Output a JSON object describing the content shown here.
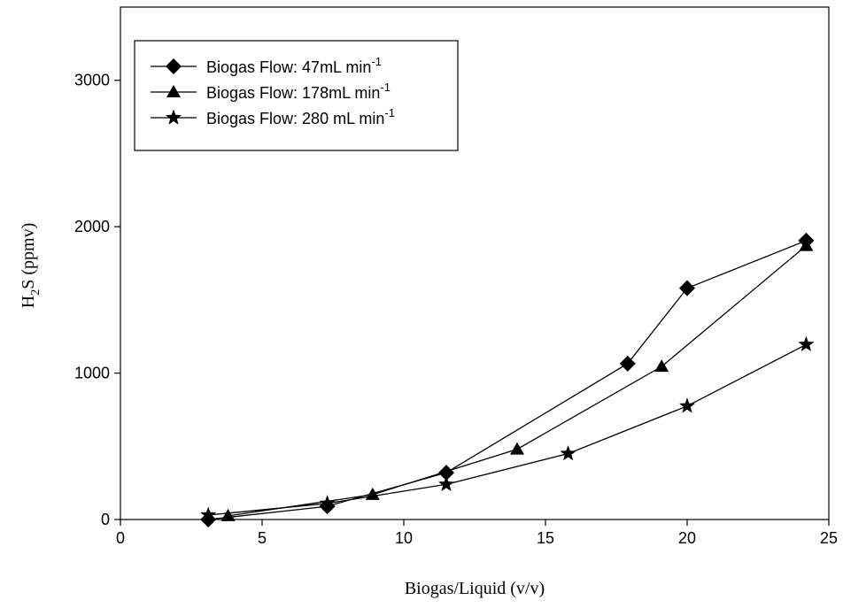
{
  "chart_data": {
    "type": "line",
    "xlabel": "Biogas/Liquid (v/v)",
    "ylabel": [
      "H",
      "2",
      "S (ppmv)"
    ],
    "xlim": [
      0,
      25
    ],
    "xticks": [
      0,
      5,
      10,
      15,
      20,
      25
    ],
    "ylim": [
      0,
      3500
    ],
    "yticks": [
      0,
      1000,
      2000,
      3000
    ],
    "legend": "upper left",
    "series": [
      {
        "name": "Biogas Flow: 47mL min",
        "name_superscript": "-1",
        "marker": "diamond",
        "color": "#000000",
        "x": [
          3.1,
          7.3,
          11.5,
          17.9,
          20.0,
          24.2
        ],
        "values": [
          0,
          90,
          320,
          1065,
          1580,
          1905
        ]
      },
      {
        "name": "Biogas Flow: 178mL min",
        "name_superscript": "-1",
        "marker": "triangle",
        "color": "#000000",
        "x": [
          3.8,
          8.9,
          14.0,
          19.1,
          24.2
        ],
        "values": [
          25,
          170,
          480,
          1045,
          1870
        ]
      },
      {
        "name": "Biogas Flow: 280 mL min",
        "name_superscript": "-1",
        "marker": "star",
        "color": "#000000",
        "x": [
          3.1,
          7.3,
          11.5,
          15.8,
          20.0,
          24.2
        ],
        "values": [
          30,
          110,
          240,
          450,
          775,
          1195
        ]
      }
    ]
  }
}
